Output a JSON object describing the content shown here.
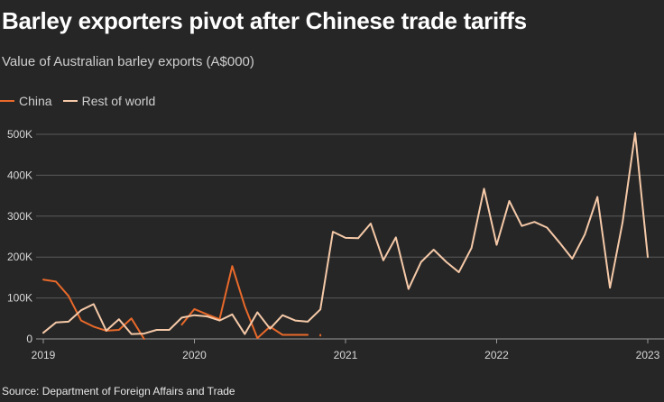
{
  "title": "Barley exporters pivot after Chinese trade tariffs",
  "subtitle": "Value of Australian barley exports (A$000)",
  "source": "Source: Department of Foreign Affairs and Trade",
  "colors": {
    "background": "#262626",
    "china": "#e8692a",
    "rest_of_world": "#f5c9a8",
    "grid": "#5a5a5a",
    "axis": "#9a9a9a"
  },
  "chart_data": {
    "type": "line",
    "title": "Barley exporters pivot after Chinese trade tariffs",
    "subtitle": "Value of Australian barley exports (A$000)",
    "xlabel": "",
    "ylabel": "",
    "x_ticks": [
      "2019",
      "2020",
      "2021",
      "2022",
      "2023"
    ],
    "y_ticks": [
      "0",
      "100K",
      "200K",
      "300K",
      "400K",
      "500K"
    ],
    "y_tick_values": [
      0,
      100000,
      200000,
      300000,
      400000,
      500000
    ],
    "ylim": [
      0,
      500000
    ],
    "xlim": [
      "2019-01",
      "2023-01"
    ],
    "grid": true,
    "legend_position": "top-left",
    "series": [
      {
        "name": "China",
        "color": "#e8692a",
        "points": [
          [
            "2019-01",
            145000
          ],
          [
            "2019-02",
            140000
          ],
          [
            "2019-03",
            105000
          ],
          [
            "2019-04",
            45000
          ],
          [
            "2019-05",
            30000
          ],
          [
            "2019-06",
            20000
          ],
          [
            "2019-07",
            22000
          ],
          [
            "2019-08",
            50000
          ],
          [
            "2019-09",
            0
          ],
          null,
          [
            "2019-12",
            35000
          ],
          [
            "2020-01",
            73000
          ],
          [
            "2020-02",
            60000
          ],
          [
            "2020-03",
            48000
          ],
          [
            "2020-04",
            178000
          ],
          [
            "2020-05",
            80000
          ],
          [
            "2020-06",
            2000
          ],
          [
            "2020-07",
            30000
          ],
          [
            "2020-08",
            10000
          ],
          [
            "2020-09",
            10000
          ],
          [
            "2020-10",
            10000
          ],
          null,
          [
            "2020-11",
            10000
          ],
          [
            "2020-11",
            8000
          ]
        ]
      },
      {
        "name": "Rest of world",
        "color": "#f5c9a8",
        "points": [
          [
            "2019-01",
            15000
          ],
          [
            "2019-02",
            40000
          ],
          [
            "2019-03",
            42000
          ],
          [
            "2019-04",
            70000
          ],
          [
            "2019-05",
            85000
          ],
          [
            "2019-06",
            20000
          ],
          [
            "2019-07",
            48000
          ],
          [
            "2019-08",
            12000
          ],
          [
            "2019-09",
            13000
          ],
          [
            "2019-10",
            22000
          ],
          [
            "2019-11",
            22000
          ],
          [
            "2019-12",
            52000
          ],
          [
            "2020-01",
            58000
          ],
          [
            "2020-02",
            55000
          ],
          [
            "2020-03",
            45000
          ],
          [
            "2020-04",
            60000
          ],
          [
            "2020-05",
            12000
          ],
          [
            "2020-06",
            65000
          ],
          [
            "2020-07",
            25000
          ],
          [
            "2020-08",
            58000
          ],
          [
            "2020-09",
            45000
          ],
          [
            "2020-10",
            42000
          ],
          [
            "2020-11",
            72000
          ],
          [
            "2020-12",
            262000
          ],
          [
            "2021-01",
            247000
          ],
          [
            "2021-02",
            246000
          ],
          [
            "2021-03",
            282000
          ],
          [
            "2021-04",
            192000
          ],
          [
            "2021-05",
            248000
          ],
          [
            "2021-06",
            122000
          ],
          [
            "2021-07",
            188000
          ],
          [
            "2021-08",
            218000
          ],
          [
            "2021-09",
            188000
          ],
          [
            "2021-10",
            163000
          ],
          [
            "2021-11",
            222000
          ],
          [
            "2021-12",
            367000
          ],
          [
            "2022-01",
            230000
          ],
          [
            "2022-02",
            337000
          ],
          [
            "2022-03",
            276000
          ],
          [
            "2022-04",
            286000
          ],
          [
            "2022-05",
            272000
          ],
          [
            "2022-06",
            235000
          ],
          [
            "2022-07",
            196000
          ],
          [
            "2022-08",
            255000
          ],
          [
            "2022-09",
            347000
          ],
          [
            "2022-10",
            125000
          ],
          [
            "2022-11",
            285000
          ],
          [
            "2022-12",
            503000
          ],
          [
            "2023-01",
            200000
          ]
        ]
      }
    ]
  }
}
